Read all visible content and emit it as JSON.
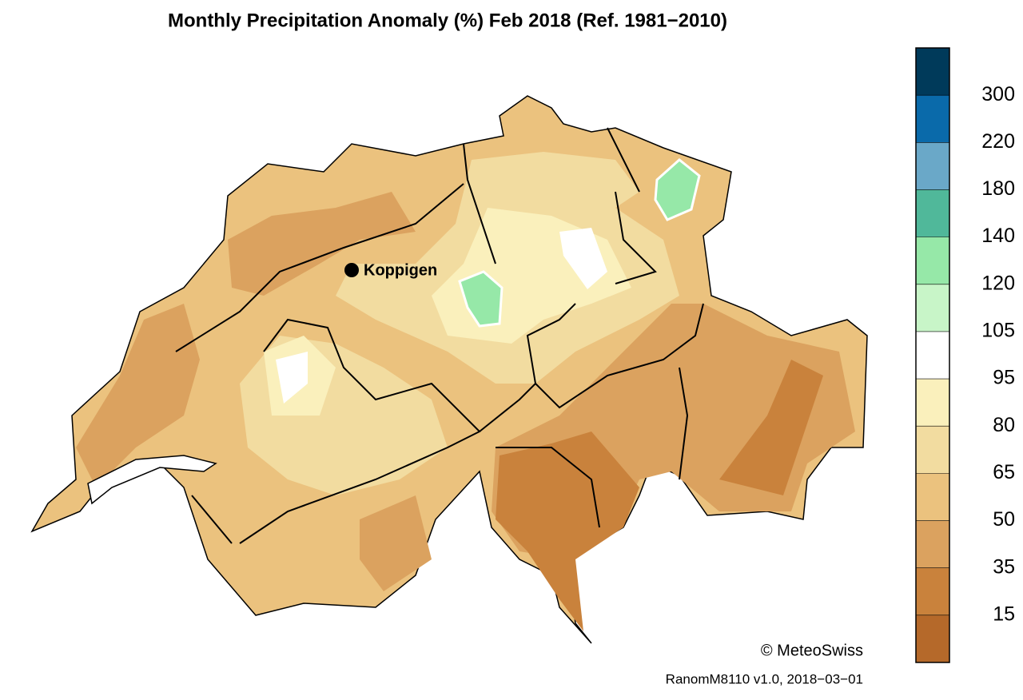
{
  "title": "Monthly Precipitation Anomaly (%) Feb 2018  (Ref. 1981−2010)",
  "legend": {
    "colors": [
      "#b5692a",
      "#c9823c",
      "#dba25f",
      "#ebc27e",
      "#f2dca0",
      "#faf0bc",
      "#ffffff",
      "#c8f5c8",
      "#96e8a8",
      "#50b89a",
      "#6aa8c8",
      "#0a6aaa",
      "#003a5a"
    ],
    "ticks": [
      15,
      35,
      50,
      65,
      80,
      95,
      105,
      120,
      140,
      180,
      220,
      300
    ]
  },
  "places": [
    {
      "name": "Koppigen"
    }
  ],
  "credit": "© MeteoSwiss",
  "footer": "RanomM8110 v1.0, 2018−03−01"
}
